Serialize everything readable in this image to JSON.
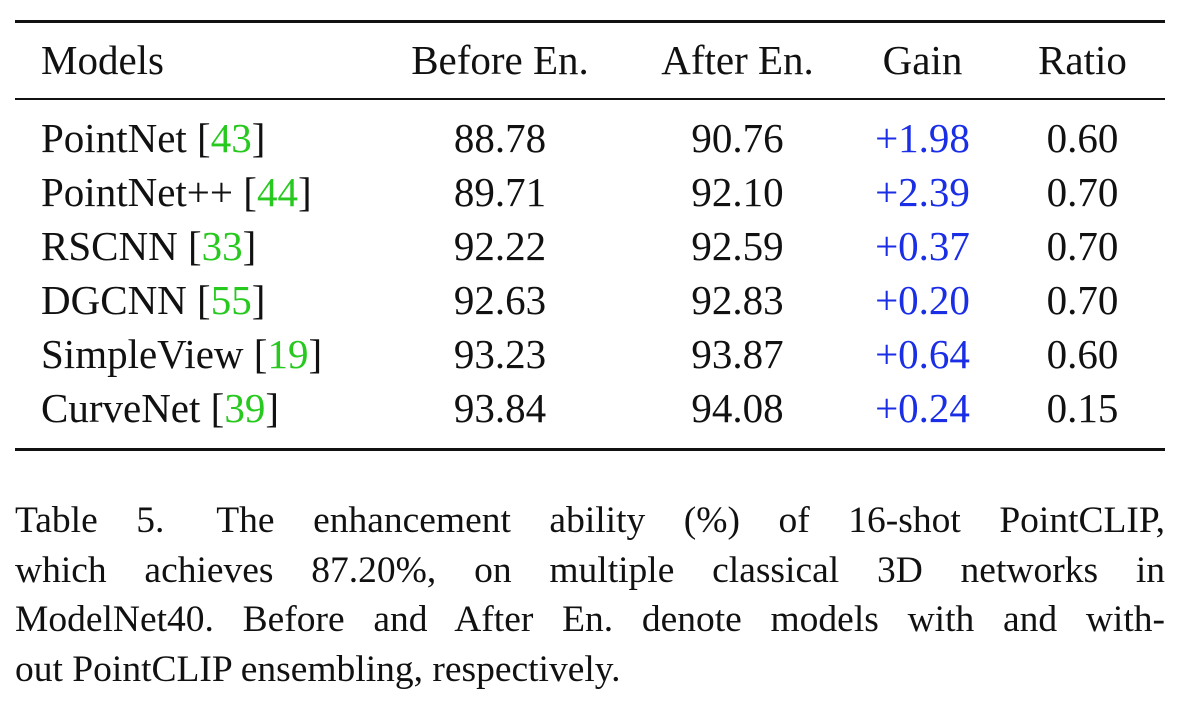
{
  "table": {
    "headers": [
      "Models",
      "Before En.",
      "After En.",
      "Gain",
      "Ratio"
    ],
    "rows": [
      {
        "model": "PointNet",
        "cite": "43",
        "before": "88.78",
        "after": "90.76",
        "gain": "+1.98",
        "ratio": "0.60",
        "after_bold": false
      },
      {
        "model": "PointNet++",
        "cite": "44",
        "before": "89.71",
        "after": "92.10",
        "gain": "+2.39",
        "ratio": "0.70",
        "after_bold": false
      },
      {
        "model": "RSCNN",
        "cite": "33",
        "before": "92.22",
        "after": "92.59",
        "gain": "+0.37",
        "ratio": "0.70",
        "after_bold": false
      },
      {
        "model": "DGCNN",
        "cite": "55",
        "before": "92.63",
        "after": "92.83",
        "gain": "+0.20",
        "ratio": "0.70",
        "after_bold": false
      },
      {
        "model": "SimpleView",
        "cite": "19",
        "before": "93.23",
        "after": "93.87",
        "gain": "+0.64",
        "ratio": "0.60",
        "after_bold": false
      },
      {
        "model": "CurveNet",
        "cite": "39",
        "before": "93.84",
        "after": "94.08",
        "gain": "+0.24",
        "ratio": "0.15",
        "after_bold": true
      }
    ],
    "colors": {
      "gain": "#1a2ee6",
      "citation": "#27c91f"
    }
  },
  "caption": {
    "label": "Table 5.",
    "lines": [
      "The enhancement ability (%) of 16-shot PointCLIP,",
      "which achieves 87.20%, on multiple classical 3D networks in",
      "ModelNet40. Before and After En. denote models with and with-",
      "out PointCLIP ensembling, respectively."
    ]
  }
}
